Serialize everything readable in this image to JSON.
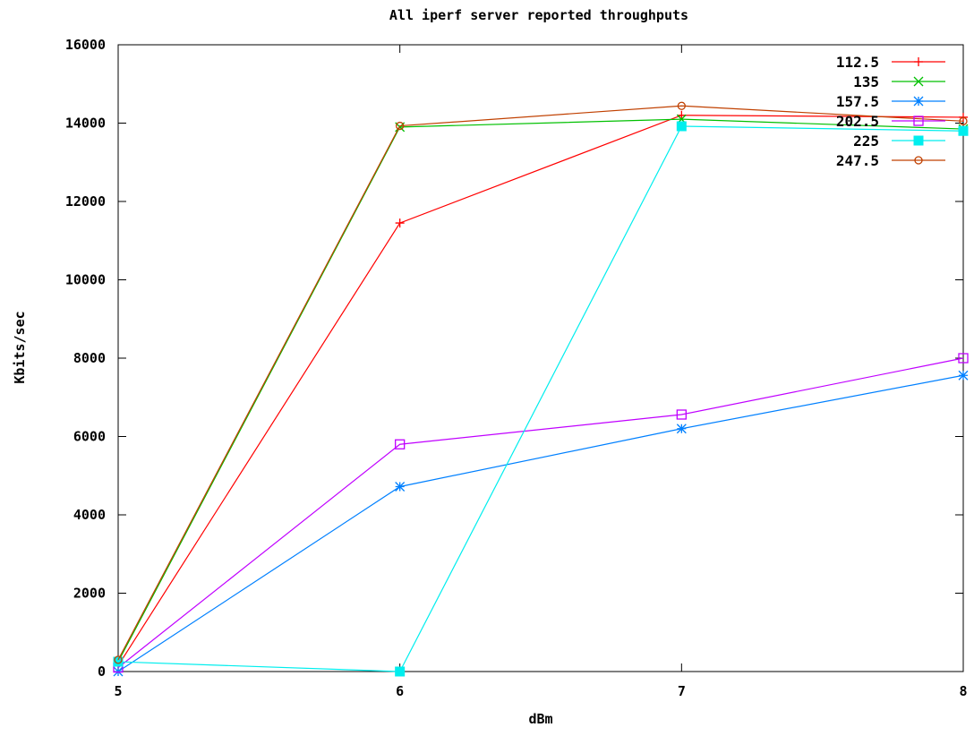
{
  "chart_data": {
    "type": "line",
    "title": "All iperf server reported throughputs",
    "xlabel": "dBm",
    "ylabel": "Kbits/sec",
    "xlim": [
      5,
      8
    ],
    "ylim": [
      0,
      16000
    ],
    "x_ticks": [
      5,
      6,
      7,
      8
    ],
    "y_ticks": [
      0,
      2000,
      4000,
      6000,
      8000,
      10000,
      12000,
      14000,
      16000
    ],
    "grid": false,
    "legend_position": "top-right",
    "x": [
      5,
      6,
      7,
      8
    ],
    "series": [
      {
        "name": "112.5",
        "values": [
          150,
          11450,
          14200,
          14150
        ],
        "color": "#ff0000",
        "marker": "plus"
      },
      {
        "name": "135",
        "values": [
          250,
          13900,
          14100,
          13850
        ],
        "color": "#00c000",
        "marker": "cross"
      },
      {
        "name": "157.5",
        "values": [
          0,
          4720,
          6200,
          7560
        ],
        "color": "#0080ff",
        "marker": "star"
      },
      {
        "name": "202.5",
        "values": [
          100,
          5800,
          6560,
          8000
        ],
        "color": "#c000ff",
        "marker": "box"
      },
      {
        "name": "225",
        "values": [
          250,
          0,
          13920,
          13800
        ],
        "color": "#00eeee",
        "marker": "filled-box"
      },
      {
        "name": "247.5",
        "values": [
          300,
          13930,
          14440,
          14050
        ],
        "color": "#c04000",
        "marker": "circle"
      }
    ]
  }
}
